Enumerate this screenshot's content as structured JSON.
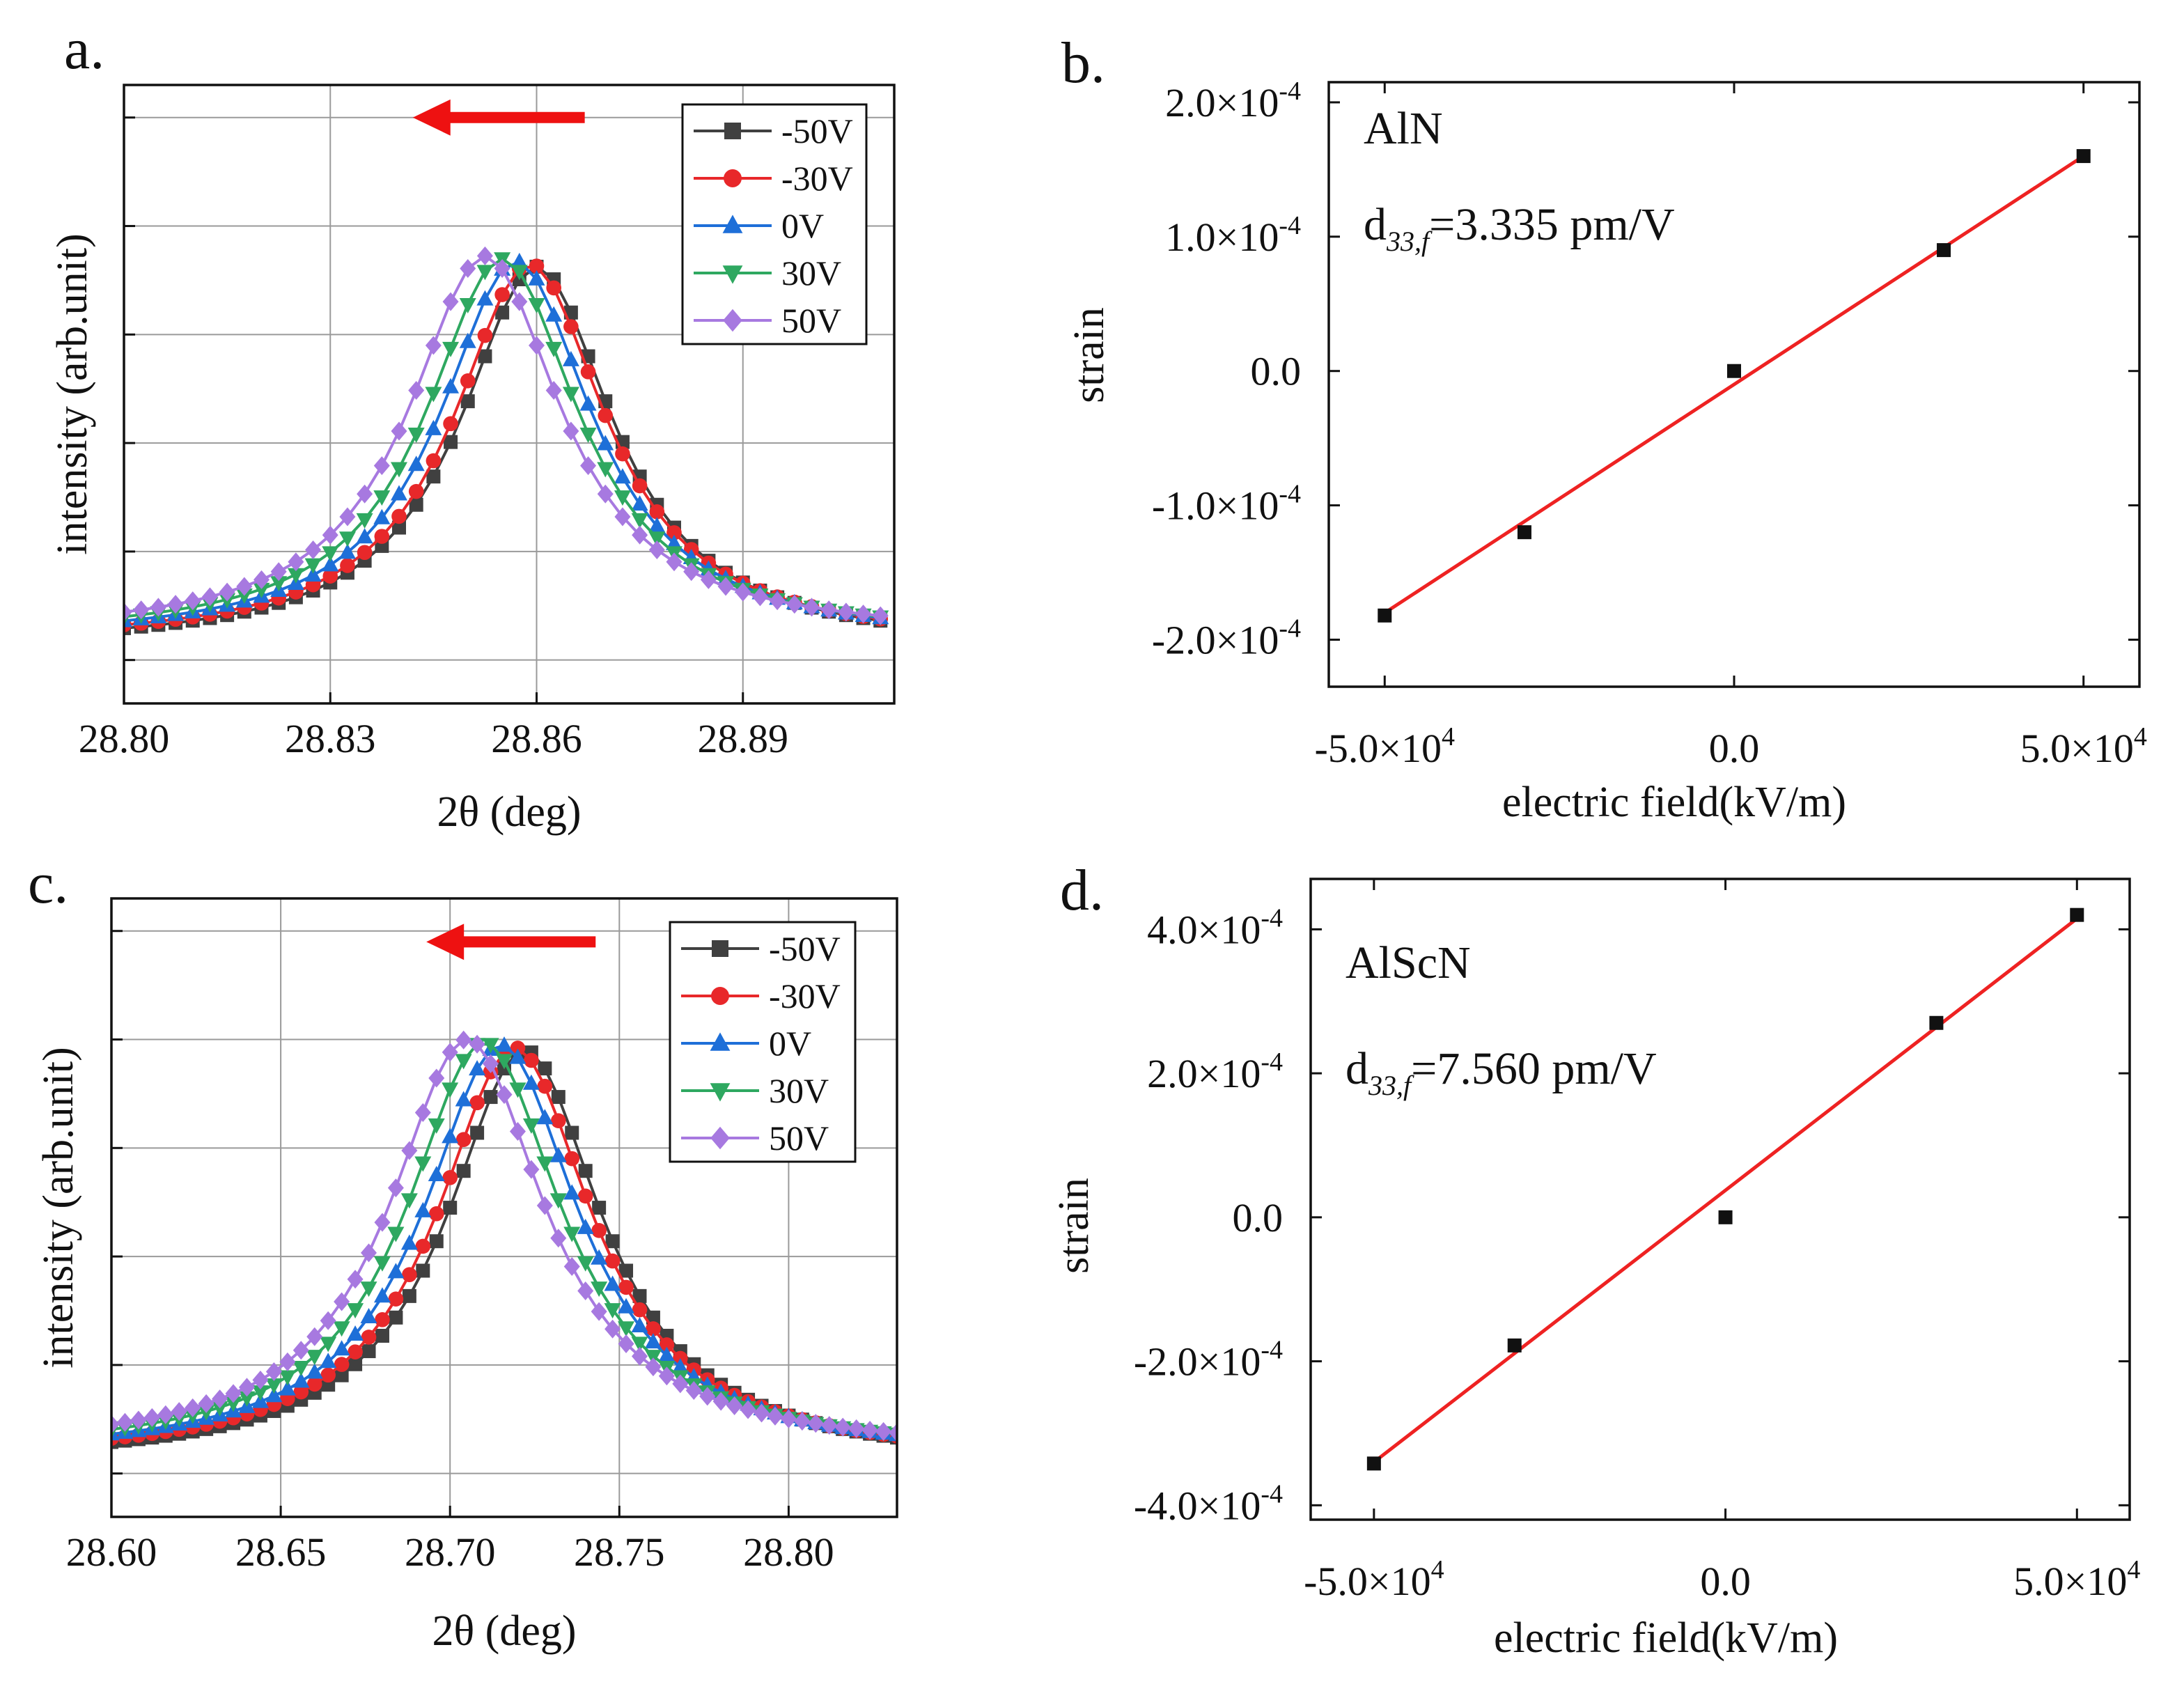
{
  "colors": {
    "series": [
      "#404040",
      "#e8282a",
      "#1e6fd8",
      "#2ea860",
      "#a779e0"
    ],
    "arrow": "#ee1111",
    "fit": "#ee2222",
    "points": "#111111",
    "grid": "#9a9a9a",
    "axis": "#111111"
  },
  "chart_data": [
    {
      "id": "a",
      "type": "line",
      "panel_label": "a.",
      "xlabel": "2θ (deg)",
      "ylabel": "intensity (arb.unit)",
      "xlim": [
        28.8,
        28.912
      ],
      "ylim": [
        -0.08,
        1.06
      ],
      "x_ticks": [
        28.8,
        28.83,
        28.86,
        28.89
      ],
      "x_tick_labels": [
        "28.80",
        "28.83",
        "28.86",
        "28.89"
      ],
      "y_ticks": [
        0.0,
        0.2,
        0.4,
        0.6,
        0.8,
        1.0
      ],
      "grid": true,
      "legend_position": "top-right",
      "arrow": {
        "from_x": 28.867,
        "to_x": 28.842,
        "y": 1.0,
        "direction": "left"
      },
      "peak_width": 0.0135,
      "sample_x": {
        "start": 28.8,
        "end": 28.912,
        "step": 0.0025
      },
      "series": [
        {
          "name": "-50V",
          "marker": "square",
          "center": 28.86,
          "height": 0.7,
          "baseline": 0.025
        },
        {
          "name": "-30V",
          "marker": "circle",
          "center": 28.859,
          "height": 0.7,
          "baseline": 0.03
        },
        {
          "name": "0V",
          "marker": "triangle-up",
          "center": 28.857,
          "height": 0.7,
          "baseline": 0.035
        },
        {
          "name": "30V",
          "marker": "triangle-down",
          "center": 28.855,
          "height": 0.7,
          "baseline": 0.04
        },
        {
          "name": "50V",
          "marker": "diamond",
          "center": 28.8525,
          "height": 0.7,
          "baseline": 0.045
        }
      ]
    },
    {
      "id": "b",
      "type": "scatter",
      "panel_label": "b.",
      "xlabel": "electric field(kV/m)",
      "ylabel": "strain",
      "xlim": [
        -5.8,
        5.8
      ],
      "ylim": [
        -2.35,
        2.15
      ],
      "x_ticks": [
        -5.0,
        0.0,
        5.0
      ],
      "x_tick_labels": [
        "-5.0×10",
        "0.0",
        "5.0×10"
      ],
      "x_tick_exponents": [
        "4",
        "",
        "4"
      ],
      "y_ticks": [
        -2.0,
        -1.0,
        0.0,
        1.0,
        2.0
      ],
      "y_tick_labels": [
        "-2.0×10",
        "-1.0×10",
        "0.0",
        "1.0×10",
        "2.0×10"
      ],
      "y_tick_exponents": [
        "-4",
        "-4",
        "",
        "-4",
        "-4"
      ],
      "grid": false,
      "annotation_material": "AlN",
      "annotation_d33_prefix": "d",
      "annotation_d33_sub": "33,f",
      "annotation_d33_value": "=3.335 pm/V",
      "x": [
        -5.0,
        -3.0,
        0.0,
        3.0,
        5.0
      ],
      "y": [
        -1.82,
        -1.2,
        0.0,
        0.9,
        1.6
      ],
      "fit_line": {
        "x": [
          -5.0,
          5.0
        ],
        "y": [
          -1.8,
          1.6
        ]
      }
    },
    {
      "id": "c",
      "type": "line",
      "panel_label": "c.",
      "xlabel": "2θ (deg)",
      "ylabel": "intensity (arb.unit)",
      "xlim": [
        28.6,
        28.832
      ],
      "ylim": [
        -0.08,
        1.06
      ],
      "x_ticks": [
        28.6,
        28.65,
        28.7,
        28.75,
        28.8
      ],
      "x_tick_labels": [
        "28.60",
        "28.65",
        "28.70",
        "28.75",
        "28.80"
      ],
      "y_ticks": [
        0.0,
        0.2,
        0.4,
        0.6,
        0.8,
        1.0
      ],
      "grid": true,
      "legend_position": "top-right",
      "arrow": {
        "from_x": 28.743,
        "to_x": 28.693,
        "y": 0.98,
        "direction": "left"
      },
      "peak_width": 0.028,
      "sample_x": {
        "start": 28.6,
        "end": 28.832,
        "step": 0.004
      },
      "series": [
        {
          "name": "-50V",
          "marker": "square",
          "center": 28.722,
          "height": 0.76,
          "baseline": 0.02
        },
        {
          "name": "-30V",
          "marker": "circle",
          "center": 28.719,
          "height": 0.76,
          "baseline": 0.025
        },
        {
          "name": "0V",
          "marker": "triangle-up",
          "center": 28.715,
          "height": 0.76,
          "baseline": 0.03
        },
        {
          "name": "30V",
          "marker": "triangle-down",
          "center": 28.71,
          "height": 0.76,
          "baseline": 0.035
        },
        {
          "name": "50V",
          "marker": "diamond",
          "center": 28.705,
          "height": 0.76,
          "baseline": 0.04
        }
      ]
    },
    {
      "id": "d",
      "type": "scatter",
      "panel_label": "d.",
      "xlabel": "electric field(kV/m)",
      "ylabel": "strain",
      "xlim": [
        -5.9,
        5.75
      ],
      "ylim": [
        -4.2,
        4.7
      ],
      "x_ticks": [
        -5.0,
        0.0,
        5.0
      ],
      "x_tick_labels": [
        "-5.0×10",
        "0.0",
        "5.0×10"
      ],
      "x_tick_exponents": [
        "4",
        "",
        "4"
      ],
      "y_ticks": [
        -4.0,
        -2.0,
        0.0,
        2.0,
        4.0
      ],
      "y_tick_labels": [
        "-4.0×10",
        "-2.0×10",
        "0.0",
        "2.0×10",
        "4.0×10"
      ],
      "y_tick_exponents": [
        "-4",
        "-4",
        "",
        "-4",
        "-4"
      ],
      "grid": false,
      "annotation_material": "AlScN",
      "annotation_d33_prefix": "d",
      "annotation_d33_sub": "33,f",
      "annotation_d33_value": "=7.560 pm/V",
      "x": [
        -5.0,
        -3.0,
        0.0,
        3.0,
        5.0
      ],
      "y": [
        -3.42,
        -1.78,
        0.0,
        2.7,
        4.2
      ],
      "fit_line": {
        "x": [
          -5.0,
          5.0
        ],
        "y": [
          -3.4,
          4.15
        ]
      }
    }
  ]
}
